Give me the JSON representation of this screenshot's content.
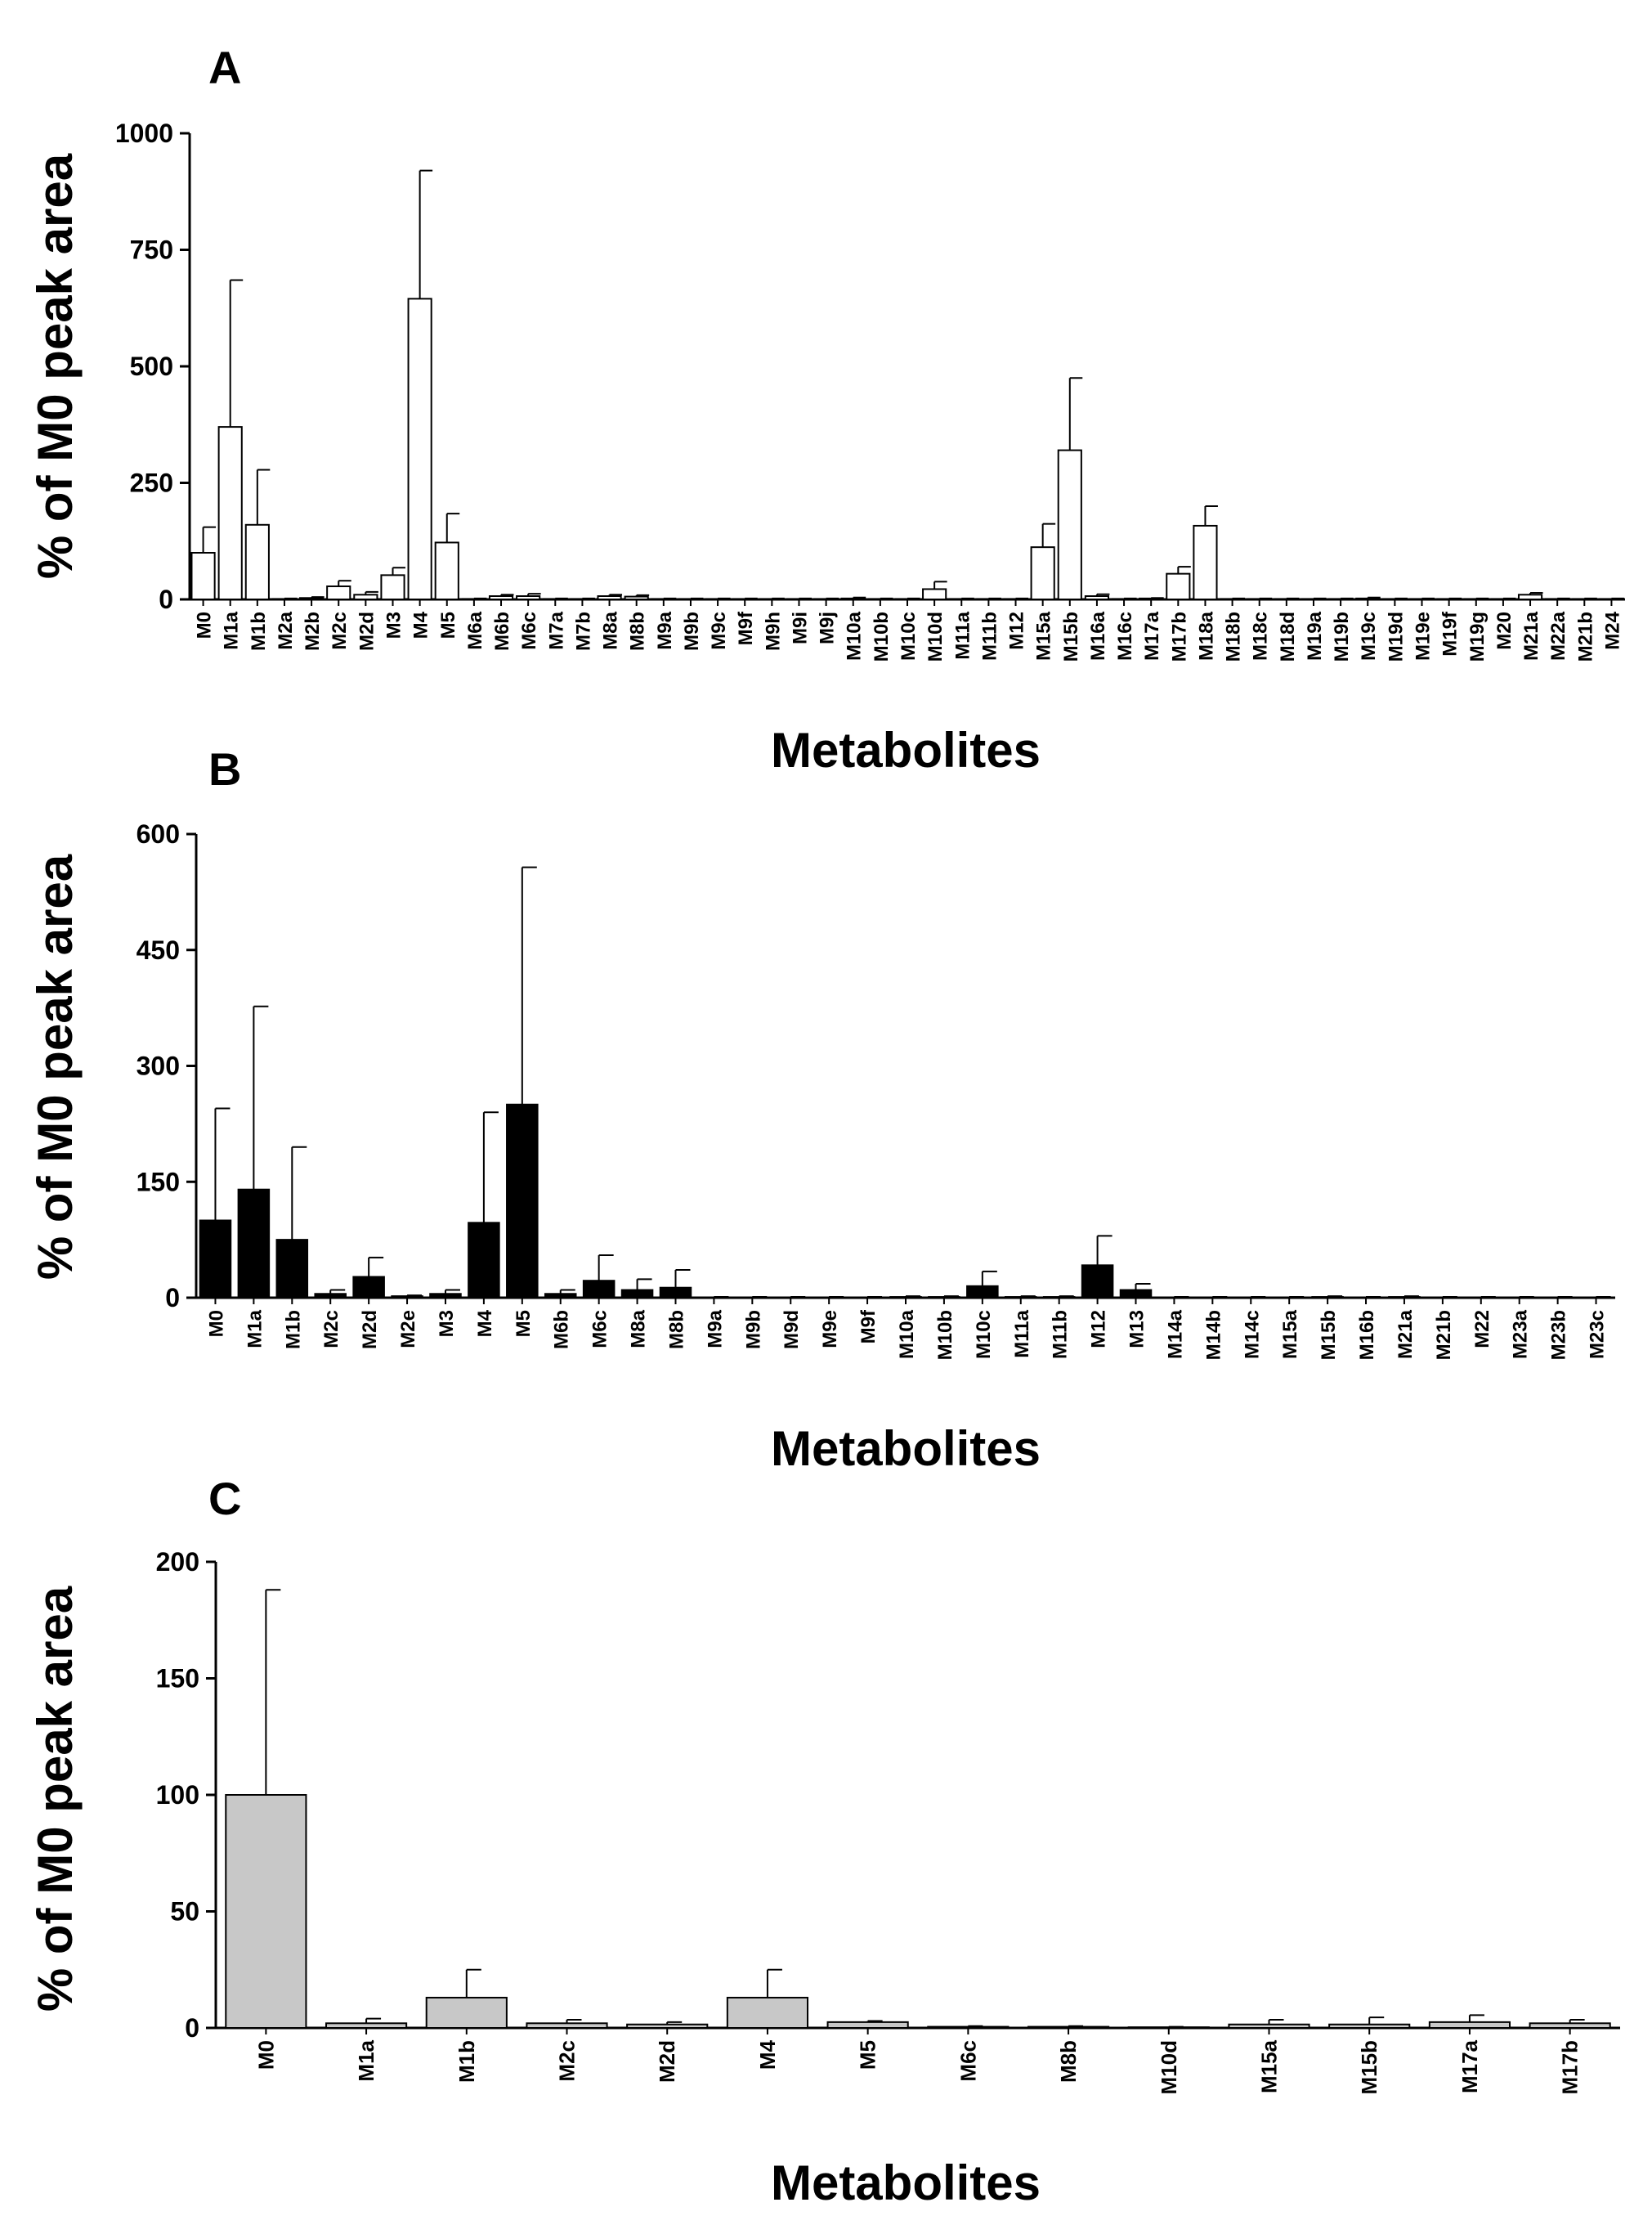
{
  "chart_data": [
    {
      "panel": "A",
      "type": "bar",
      "xlabel": "Metabolites",
      "ylabel": "% of M0 peak area",
      "ylim": [
        0,
        1000
      ],
      "yticks": [
        "0",
        "250",
        "500",
        "750",
        "1000"
      ],
      "ytick_values": [
        0,
        250,
        500,
        750,
        1000
      ],
      "bar_color": "#ffffff",
      "categories": [
        "M0",
        "M1a",
        "M1b",
        "M2a",
        "M2b",
        "M2c",
        "M2d",
        "M3",
        "M4",
        "M5",
        "M6a",
        "M6b",
        "M6c",
        "M7a",
        "M7b",
        "M8a",
        "M8b",
        "M9a",
        "M9b",
        "M9c",
        "M9f",
        "M9h",
        "M9i",
        "M9j",
        "M10a",
        "M10b",
        "M10c",
        "M10d",
        "M11a",
        "M11b",
        "M12",
        "M15a",
        "M15b",
        "M16a",
        "M16c",
        "M17a",
        "M17b",
        "M18a",
        "M18b",
        "M18c",
        "M18d",
        "M19a",
        "M19b",
        "M19c",
        "M19d",
        "M19e",
        "M19f",
        "M19g",
        "M20",
        "M21a",
        "M22a",
        "M21b",
        "M24"
      ],
      "values": [
        100,
        370,
        160,
        1,
        3,
        28,
        10,
        52,
        645,
        122,
        1,
        7,
        7,
        1,
        1,
        7,
        6,
        1,
        1,
        1,
        1,
        1,
        1,
        1,
        2,
        1,
        1,
        22,
        1,
        1,
        1,
        112,
        320,
        7,
        1,
        2,
        55,
        158,
        1,
        1,
        1,
        1,
        1,
        2,
        1,
        1,
        1,
        1,
        1,
        10,
        1,
        1,
        1
      ],
      "errors": [
        55,
        315,
        118,
        1,
        2,
        12,
        6,
        16,
        275,
        62,
        1,
        3,
        5,
        1,
        1,
        3,
        3,
        1,
        1,
        1,
        1,
        1,
        1,
        1,
        2,
        1,
        1,
        16,
        1,
        1,
        1,
        50,
        155,
        4,
        1,
        1,
        15,
        42,
        1,
        1,
        1,
        1,
        1,
        2,
        1,
        1,
        1,
        1,
        1,
        4,
        1,
        1,
        1
      ]
    },
    {
      "panel": "B",
      "type": "bar",
      "xlabel": "Metabolites",
      "ylabel": "% of M0 peak area",
      "ylim": [
        0,
        600
      ],
      "yticks": [
        "0",
        "150",
        "300",
        "450",
        "600"
      ],
      "ytick_values": [
        0,
        150,
        300,
        450,
        600
      ],
      "bar_color": "#000000",
      "categories": [
        "M0",
        "M1a",
        "M1b",
        "M2c",
        "M2d",
        "M2e",
        "M3",
        "M4",
        "M5",
        "M6b",
        "M6c",
        "M8a",
        "M8b",
        "M9a",
        "M9b",
        "M9d",
        "M9e",
        "M9f",
        "M10a",
        "M10b",
        "M10c",
        "M11a",
        "M11b",
        "M12",
        "M13",
        "M14a",
        "M14b",
        "M14c",
        "M15a",
        "M15b",
        "M16b",
        "M21a",
        "M21b",
        "M22",
        "M23a",
        "M23b",
        "M23c"
      ],
      "values": [
        100,
        140,
        75,
        5,
        27,
        2,
        5,
        97,
        250,
        5,
        22,
        10,
        13,
        0.5,
        0.5,
        0.5,
        0.5,
        0.5,
        1,
        1,
        15,
        1,
        1,
        42,
        10,
        0.5,
        0.5,
        0.5,
        0.5,
        1,
        0.5,
        1,
        0.5,
        0.5,
        0.5,
        0.5,
        0.5
      ],
      "errors": [
        145,
        237,
        120,
        5,
        25,
        1,
        5,
        143,
        307,
        5,
        33,
        14,
        23,
        0.5,
        0.5,
        0.5,
        0.5,
        0.5,
        1,
        1,
        19,
        1,
        1,
        38,
        8,
        0.5,
        0.5,
        0.5,
        0.5,
        1,
        0.5,
        1,
        0.5,
        0.5,
        0.5,
        0.5,
        0.5
      ]
    },
    {
      "panel": "C",
      "type": "bar",
      "xlabel": "Metabolites",
      "ylabel": "% of M0 peak area",
      "ylim": [
        0,
        200
      ],
      "yticks": [
        "0",
        "50",
        "100",
        "150",
        "200"
      ],
      "ytick_values": [
        0,
        50,
        100,
        150,
        200
      ],
      "bar_color": "#c8c8c8",
      "categories": [
        "M0",
        "M1a",
        "M1b",
        "M2c",
        "M2d",
        "M4",
        "M5",
        "M6c",
        "M8b",
        "M10d",
        "M15a",
        "M15b",
        "M17a",
        "M17b"
      ],
      "values": [
        100,
        2,
        13,
        2,
        1.5,
        13,
        2.5,
        0.5,
        0.5,
        0.3,
        1.5,
        1.5,
        2.5,
        2
      ],
      "errors": [
        88,
        2,
        12,
        1.5,
        1,
        12,
        0.5,
        0.3,
        0.3,
        0.2,
        2,
        3,
        3,
        1.5
      ]
    }
  ]
}
